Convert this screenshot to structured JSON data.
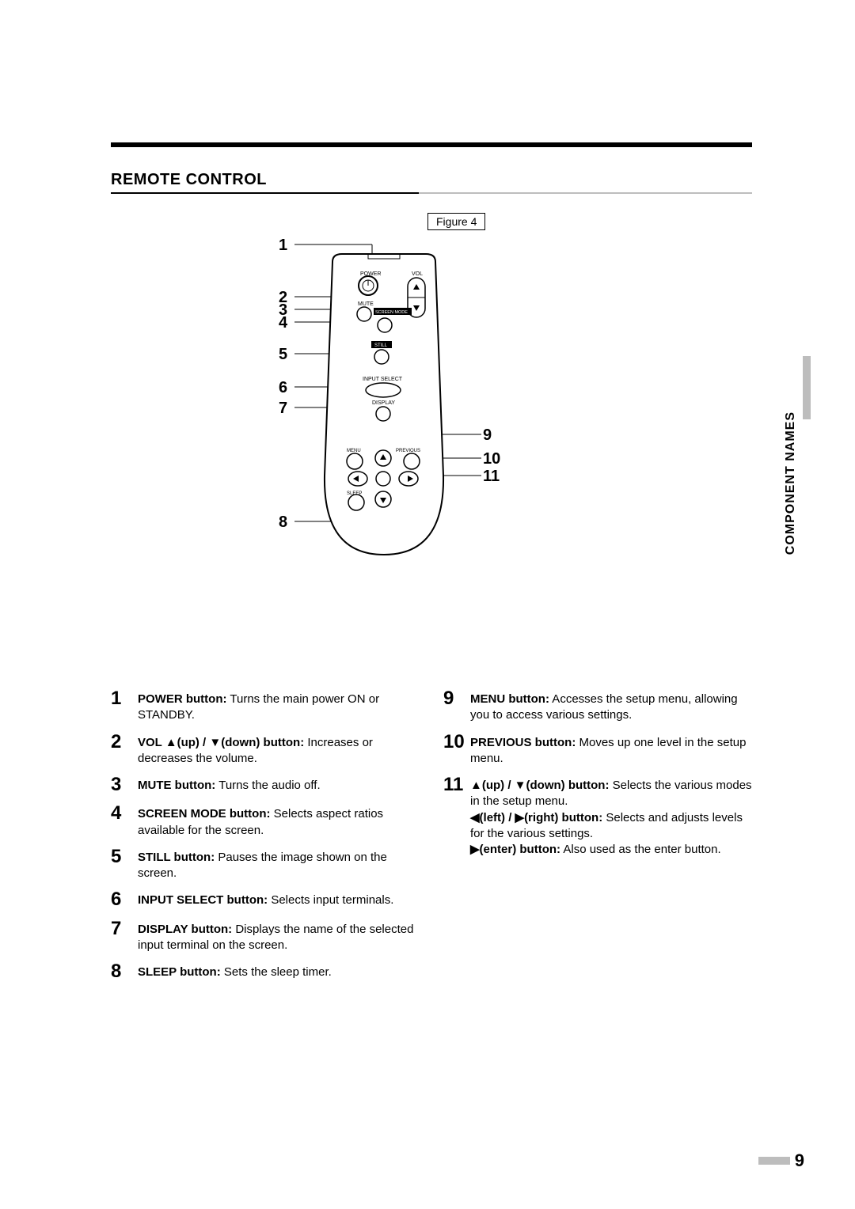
{
  "section_title": "REMOTE CONTROL",
  "figure_label": "Figure 4",
  "side_tab": "COMPONENT NAMES",
  "page_number": "9",
  "remote_labels": {
    "power": "POWER",
    "vol": "VOL",
    "mute": "MUTE",
    "screen_mode": "SCREEN MODE",
    "still": "STILL",
    "input_select": "INPUT SELECT",
    "display": "DISPLAY",
    "menu": "MENU",
    "previous": "PREVIOUS",
    "sleep": "SLEEP"
  },
  "callouts": {
    "n1": "1",
    "n2": "2",
    "n3": "3",
    "n4": "4",
    "n5": "5",
    "n6": "6",
    "n7": "7",
    "n8": "8",
    "n9": "9",
    "n10": "10",
    "n11": "11"
  },
  "col1": [
    {
      "num": "1",
      "label": "POWER button:",
      "text": " Turns the main power ON or STANDBY."
    },
    {
      "num": "2",
      "label": "VOL ▲(up) / ▼(down) button:",
      "text": " Increases or decreases the volume."
    },
    {
      "num": "3",
      "label": "MUTE button:",
      "text": " Turns the audio off."
    },
    {
      "num": "4",
      "label": "SCREEN MODE button:",
      "text": " Selects aspect ratios available for the screen."
    },
    {
      "num": "5",
      "label": "STILL button:",
      "text": " Pauses the image shown on the screen."
    },
    {
      "num": "6",
      "label": "INPUT SELECT button:",
      "text": " Selects input terminals."
    },
    {
      "num": "7",
      "label": "DISPLAY button:",
      "text": " Displays the name of the selected input terminal on the screen."
    },
    {
      "num": "8",
      "label": "SLEEP button:",
      "text": " Sets the sleep timer."
    }
  ],
  "col2": [
    {
      "num": "9",
      "label": "MENU button:",
      "text": " Accesses the setup menu, allowing you to access various settings."
    },
    {
      "num": "10",
      "label": "PREVIOUS button:",
      "text": " Moves up one level in the setup menu."
    },
    {
      "num": "11",
      "label": "▲(up) / ▼(down) button:",
      "text": " Selects the various modes in the setup menu.",
      "extra": [
        {
          "label": "◀(left) / ▶(right) button:",
          "text": " Selects and adjusts levels for the various settings."
        },
        {
          "label": "▶(enter) button:",
          "text": " Also used as the enter button."
        }
      ]
    }
  ]
}
